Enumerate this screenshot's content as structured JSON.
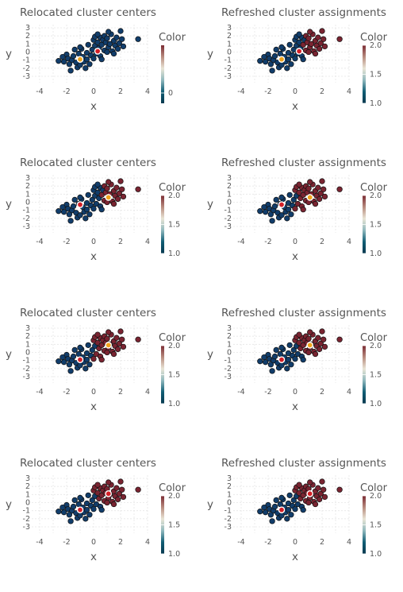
{
  "chart_data": [
    {
      "type": "scatter",
      "title": "Relocated cluster centers",
      "xlabel": "x",
      "ylabel": "y",
      "xlim": [
        -4,
        4
      ],
      "ylim": [
        -3,
        3
      ],
      "x_ticks": [
        "-4",
        "-2",
        "0",
        "2",
        "4"
      ],
      "y_ticks": [
        "3",
        "2",
        "1",
        "0",
        "-1",
        "-2",
        "-3"
      ],
      "legend_title": "Color",
      "colorbar_range": [
        0,
        2
      ],
      "colorbar_ticks": [
        "0"
      ],
      "centers": [
        {
          "x": -1.0,
          "y": -0.9,
          "color": "#f0a31c"
        },
        {
          "x": 0.3,
          "y": 0.1,
          "color": "#d31f26"
        }
      ],
      "assignment": "initial"
    },
    {
      "type": "scatter",
      "title": "Refreshed cluster assignments",
      "xlabel": "x",
      "ylabel": "y",
      "xlim": [
        -4,
        4
      ],
      "ylim": [
        -3,
        3
      ],
      "x_ticks": [
        "-4",
        "-2",
        "0",
        "2",
        "4"
      ],
      "y_ticks": [
        "3",
        "2",
        "1",
        "0",
        "-1",
        "-2",
        "-3"
      ],
      "legend_title": "Color",
      "colorbar_range": [
        1,
        2
      ],
      "colorbar_ticks": [
        "2.0",
        "1.5",
        "1.0"
      ],
      "centers": [
        {
          "x": -1.0,
          "y": -0.9,
          "color": "#f0a31c"
        },
        {
          "x": 0.3,
          "y": 0.1,
          "color": "#d31f26"
        }
      ],
      "assignment": "a1"
    },
    {
      "type": "scatter",
      "title": "Relocated cluster centers",
      "xlabel": "x",
      "ylabel": "y",
      "xlim": [
        -4,
        4
      ],
      "ylim": [
        -3,
        3
      ],
      "x_ticks": [
        "-4",
        "-2",
        "0",
        "2",
        "4"
      ],
      "y_ticks": [
        "3",
        "2",
        "1",
        "0",
        "-1",
        "-2",
        "-3"
      ],
      "legend_title": "Color",
      "colorbar_range": [
        1,
        2
      ],
      "colorbar_ticks": [
        "2.0",
        "1.5",
        "1.0"
      ],
      "centers": [
        {
          "x": -1.0,
          "y": -0.3,
          "color": "#d31f26"
        },
        {
          "x": 1.1,
          "y": 0.6,
          "color": "#f0a31c"
        }
      ],
      "assignment": "a1"
    },
    {
      "type": "scatter",
      "title": "Refreshed cluster assignments",
      "xlabel": "x",
      "ylabel": "y",
      "xlim": [
        -4,
        4
      ],
      "ylim": [
        -3,
        3
      ],
      "x_ticks": [
        "-4",
        "-2",
        "0",
        "2",
        "4"
      ],
      "y_ticks": [
        "3",
        "2",
        "1",
        "0",
        "-1",
        "-2",
        "-3"
      ],
      "legend_title": "Color",
      "colorbar_range": [
        1,
        2
      ],
      "colorbar_ticks": [
        "2.0",
        "1.5",
        "1.0"
      ],
      "centers": [
        {
          "x": -1.0,
          "y": -0.3,
          "color": "#d31f26"
        },
        {
          "x": 1.1,
          "y": 0.6,
          "color": "#f0a31c"
        }
      ],
      "assignment": "a2"
    },
    {
      "type": "scatter",
      "title": "Relocated cluster centers",
      "xlabel": "x",
      "ylabel": "y",
      "xlim": [
        -4,
        4
      ],
      "ylim": [
        -3,
        3
      ],
      "x_ticks": [
        "-4",
        "-2",
        "0",
        "2",
        "4"
      ],
      "y_ticks": [
        "3",
        "2",
        "1",
        "0",
        "-1",
        "-2",
        "-3"
      ],
      "legend_title": "Color",
      "colorbar_range": [
        1,
        2
      ],
      "colorbar_ticks": [
        "2.0",
        "1.5",
        "1.0"
      ],
      "centers": [
        {
          "x": -1.0,
          "y": -0.9,
          "color": "#d31f26"
        },
        {
          "x": 1.1,
          "y": 0.9,
          "color": "#f0a31c"
        }
      ],
      "assignment": "a2"
    },
    {
      "type": "scatter",
      "title": "Refreshed cluster assignments",
      "xlabel": "x",
      "ylabel": "y",
      "xlim": [
        -4,
        4
      ],
      "ylim": [
        -3,
        3
      ],
      "x_ticks": [
        "-4",
        "-2",
        "0",
        "2",
        "4"
      ],
      "y_ticks": [
        "3",
        "2",
        "1",
        "0",
        "-1",
        "-2",
        "-3"
      ],
      "legend_title": "Color",
      "colorbar_range": [
        1,
        2
      ],
      "colorbar_ticks": [
        "2.0",
        "1.5",
        "1.0"
      ],
      "centers": [
        {
          "x": -1.0,
          "y": -0.9,
          "color": "#d31f26"
        },
        {
          "x": 1.1,
          "y": 0.9,
          "color": "#f0a31c"
        }
      ],
      "assignment": "a3"
    },
    {
      "type": "scatter",
      "title": "Relocated cluster centers",
      "xlabel": "x",
      "ylabel": "y",
      "xlim": [
        -4,
        4
      ],
      "ylim": [
        -3,
        3
      ],
      "x_ticks": [
        "-4",
        "-2",
        "0",
        "2",
        "4"
      ],
      "y_ticks": [
        "3",
        "2",
        "1",
        "0",
        "-1",
        "-2",
        "-3"
      ],
      "legend_title": "Color",
      "colorbar_range": [
        1,
        2
      ],
      "colorbar_ticks": [
        "2.0",
        "1.5",
        "1.0"
      ],
      "centers": [
        {
          "x": -1.0,
          "y": -0.9,
          "color": "#d31f26"
        },
        {
          "x": 1.1,
          "y": 1.1,
          "color": "#d31f26"
        }
      ],
      "assignment": "a3"
    },
    {
      "type": "scatter",
      "title": "Refreshed cluster assignments",
      "xlabel": "x",
      "ylabel": "y",
      "xlim": [
        -4,
        4
      ],
      "ylim": [
        -3,
        3
      ],
      "x_ticks": [
        "-4",
        "-2",
        "0",
        "2",
        "4"
      ],
      "y_ticks": [
        "3",
        "2",
        "1",
        "0",
        "-1",
        "-2",
        "-3"
      ],
      "legend_title": "Color",
      "colorbar_range": [
        1,
        2
      ],
      "colorbar_ticks": [
        "2.0",
        "1.5",
        "1.0"
      ],
      "centers": [
        {
          "x": -1.0,
          "y": -0.9,
          "color": "#d31f26"
        },
        {
          "x": 1.1,
          "y": 1.1,
          "color": "#d31f26"
        }
      ],
      "assignment": "a3"
    }
  ],
  "points": [
    {
      "x": -2.6,
      "y": -1.1,
      "a1": 1,
      "a2": 1,
      "a3": 1
    },
    {
      "x": -2.2,
      "y": -1.2,
      "a1": 1,
      "a2": 1,
      "a3": 1
    },
    {
      "x": -2.0,
      "y": -0.3,
      "a1": 1,
      "a2": 1,
      "a3": 1
    },
    {
      "x": -1.9,
      "y": -0.8,
      "a1": 1,
      "a2": 1,
      "a3": 1
    },
    {
      "x": -1.8,
      "y": -1.5,
      "a1": 1,
      "a2": 1,
      "a3": 1
    },
    {
      "x": -1.7,
      "y": -2.3,
      "a1": 1,
      "a2": 1,
      "a3": 1
    },
    {
      "x": -1.6,
      "y": -1.0,
      "a1": 1,
      "a2": 1,
      "a3": 1
    },
    {
      "x": -1.5,
      "y": -0.5,
      "a1": 1,
      "a2": 1,
      "a3": 1
    },
    {
      "x": -1.4,
      "y": 0.3,
      "a1": 1,
      "a2": 1,
      "a3": 1
    },
    {
      "x": -1.3,
      "y": -1.3,
      "a1": 1,
      "a2": 1,
      "a3": 1
    },
    {
      "x": -1.2,
      "y": -1.9,
      "a1": 1,
      "a2": 1,
      "a3": 1
    },
    {
      "x": -1.1,
      "y": -0.2,
      "a1": 1,
      "a2": 1,
      "a3": 1
    },
    {
      "x": -1.0,
      "y": -1.6,
      "a1": 1,
      "a2": 1,
      "a3": 1
    },
    {
      "x": -0.9,
      "y": 0.4,
      "a1": 1,
      "a2": 1,
      "a3": 1
    },
    {
      "x": -0.8,
      "y": -0.6,
      "a1": 1,
      "a2": 1,
      "a3": 1
    },
    {
      "x": -0.7,
      "y": -1.2,
      "a1": 1,
      "a2": 1,
      "a3": 1
    },
    {
      "x": -0.6,
      "y": -2.0,
      "a1": 1,
      "a2": 1,
      "a3": 1
    },
    {
      "x": -0.5,
      "y": -0.1,
      "a1": 1,
      "a2": 1,
      "a3": 1
    },
    {
      "x": -0.5,
      "y": -0.9,
      "a1": 1,
      "a2": 1,
      "a3": 1
    },
    {
      "x": -0.4,
      "y": 0.9,
      "a1": 1,
      "a2": 1,
      "a3": 1
    },
    {
      "x": -0.3,
      "y": -1.5,
      "a1": 1,
      "a2": 1,
      "a3": 1
    },
    {
      "x": -0.2,
      "y": -0.4,
      "a1": 1,
      "a2": 1,
      "a3": 1
    },
    {
      "x": -0.1,
      "y": 0.3,
      "a1": 1,
      "a2": 1,
      "a3": 1
    },
    {
      "x": 0.0,
      "y": -0.8,
      "a1": 1,
      "a2": 2,
      "a3": 1
    },
    {
      "x": 0.1,
      "y": 0.8,
      "a1": 1,
      "a2": 1,
      "a3": 1
    },
    {
      "x": 0.2,
      "y": -0.2,
      "a1": 1,
      "a2": 2,
      "a3": 1
    },
    {
      "x": -1.0,
      "y": 0.6,
      "a1": 1,
      "a2": 1,
      "a3": 1
    },
    {
      "x": -2.3,
      "y": -0.6,
      "a1": 1,
      "a2": 1,
      "a3": 1
    },
    {
      "x": 0.0,
      "y": 1.5,
      "a1": 1,
      "a2": 2,
      "a3": 2
    },
    {
      "x": 0.1,
      "y": 1.9,
      "a1": 1,
      "a2": 2,
      "a3": 2
    },
    {
      "x": 0.3,
      "y": 1.2,
      "a1": 1,
      "a2": 2,
      "a3": 2
    },
    {
      "x": 0.4,
      "y": 0.5,
      "a1": 1,
      "a2": 2,
      "a3": 2
    },
    {
      "x": 0.5,
      "y": 1.8,
      "a1": 1,
      "a2": 2,
      "a3": 2
    },
    {
      "x": 0.5,
      "y": -0.5,
      "a1": 1,
      "a2": 2,
      "a3": 1
    },
    {
      "x": 0.6,
      "y": 0.9,
      "a1": 2,
      "a2": 2,
      "a3": 2
    },
    {
      "x": 0.7,
      "y": 1.5,
      "a1": 1,
      "a2": 2,
      "a3": 2
    },
    {
      "x": 0.8,
      "y": 2.0,
      "a1": 2,
      "a2": 2,
      "a3": 2
    },
    {
      "x": 0.8,
      "y": 0.2,
      "a1": 2,
      "a2": 2,
      "a3": 2
    },
    {
      "x": 0.9,
      "y": 1.2,
      "a1": 2,
      "a2": 2,
      "a3": 2
    },
    {
      "x": 1.0,
      "y": 1.7,
      "a1": 2,
      "a2": 2,
      "a3": 2
    },
    {
      "x": 1.1,
      "y": 0.6,
      "a1": 2,
      "a2": 2,
      "a3": 2
    },
    {
      "x": 1.2,
      "y": 1.0,
      "a1": 2,
      "a2": 2,
      "a3": 2
    },
    {
      "x": 1.3,
      "y": 2.2,
      "a1": 2,
      "a2": 2,
      "a3": 2
    },
    {
      "x": 1.4,
      "y": 0.1,
      "a1": 2,
      "a2": 2,
      "a3": 2
    },
    {
      "x": 1.5,
      "y": 1.4,
      "a1": 2,
      "a2": 2,
      "a3": 2
    },
    {
      "x": 1.6,
      "y": 0.8,
      "a1": 2,
      "a2": 2,
      "a3": 2
    },
    {
      "x": 1.7,
      "y": 1.8,
      "a1": 2,
      "a2": 2,
      "a3": 2
    },
    {
      "x": 1.8,
      "y": 0.4,
      "a1": 2,
      "a2": 2,
      "a3": 2
    },
    {
      "x": 1.9,
      "y": 1.1,
      "a1": 2,
      "a2": 2,
      "a3": 2
    },
    {
      "x": 2.0,
      "y": 2.6,
      "a1": 2,
      "a2": 2,
      "a3": 2
    },
    {
      "x": 2.1,
      "y": 1.6,
      "a1": 2,
      "a2": 2,
      "a3": 2
    },
    {
      "x": 2.2,
      "y": 0.7,
      "a1": 2,
      "a2": 2,
      "a3": 2
    },
    {
      "x": 1.1,
      "y": 2.5,
      "a1": 2,
      "a2": 2,
      "a3": 2
    },
    {
      "x": 0.3,
      "y": 2.2,
      "a1": 1,
      "a2": 2,
      "a3": 2
    },
    {
      "x": 1.5,
      "y": -0.2,
      "a1": 2,
      "a2": 2,
      "a3": 2
    },
    {
      "x": 3.3,
      "y": 1.6,
      "a1": 2,
      "a2": 2,
      "a3": 2
    },
    {
      "x": 0.6,
      "y": -0.9,
      "a1": 1,
      "a2": 2,
      "a3": 1
    },
    {
      "x": 1.0,
      "y": 0.0,
      "a1": 2,
      "a2": 2,
      "a3": 2
    }
  ],
  "colors": {
    "cluster1": "#113d6b",
    "cluster2": "#7a2431",
    "colorbar_stops": [
      "#7b2b33",
      "#b88c7f",
      "#e9e5d6",
      "#8fb8bd",
      "#115e75",
      "#08394f"
    ]
  }
}
